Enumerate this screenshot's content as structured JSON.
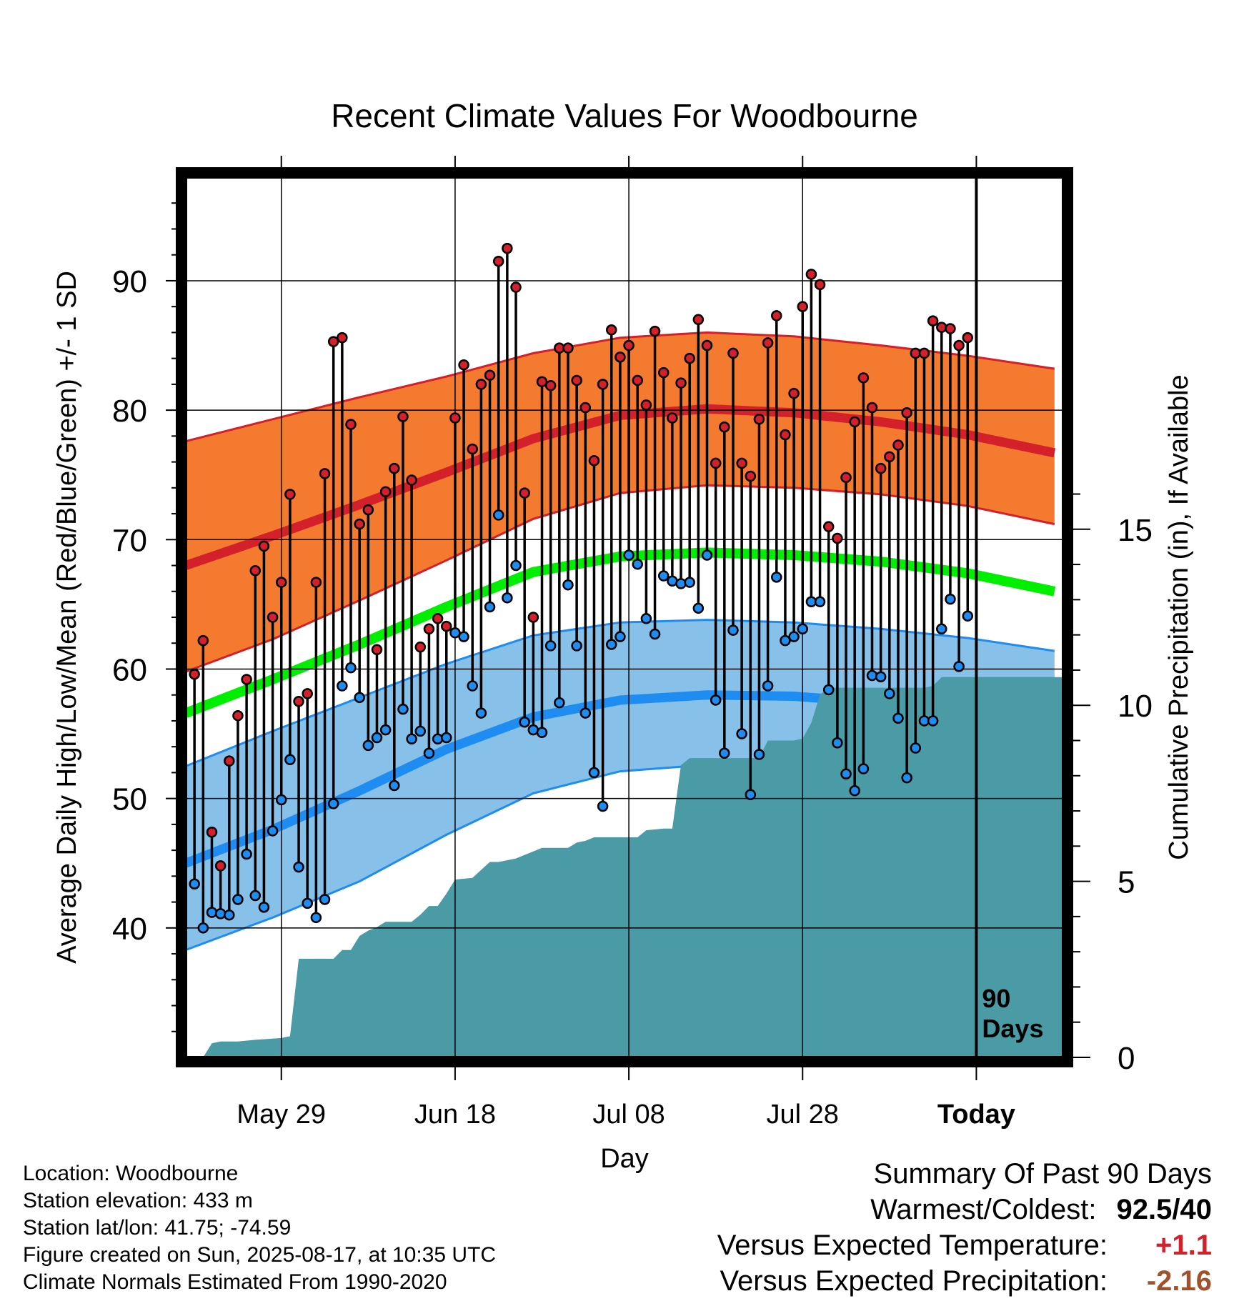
{
  "title": "Recent Climate Values For Woodbourne",
  "ylabel_left": "Average Daily High/Low/Mean (Red/Blue/Green) +/- 1 SD",
  "ylabel_right": "Cumulative Precipitation (in), If Available",
  "xlabel": "Day",
  "today_marker_line1": "90",
  "today_marker_line2": "Days",
  "colors": {
    "high_band": "#f47a30",
    "high_line": "#d3202a",
    "low_band": "#87c0e8",
    "low_line": "#1e8cf0",
    "mean_line": "#00ee00",
    "precip": "#4a9ba6",
    "warm_text": "#d3202a",
    "precip_text": "#a0522d"
  },
  "footer": {
    "location": "Location: Woodbourne",
    "elevation": "Station elevation: 433 m",
    "latlon": "Station lat/lon: 41.75; -74.59",
    "created": "Figure created on Sun, 2025-08-17, at 10:35 UTC",
    "normals": "Climate Normals Estimated From 1990-2020"
  },
  "summary": {
    "heading": "Summary Of Past 90 Days",
    "warmest_label": "Warmest/Coldest:",
    "warmest_value": "92.5/40",
    "temp_label": "Versus Expected Temperature:",
    "temp_value": "+1.1",
    "precip_label": "Versus Expected Precipitation:",
    "precip_value": "-2.16"
  },
  "chart_data": {
    "type": "line",
    "x_tick_labels": [
      {
        "day": 11,
        "label": "May 29"
      },
      {
        "day": 31,
        "label": "Jun 18"
      },
      {
        "day": 51,
        "label": "Jul 08"
      },
      {
        "day": 71,
        "label": "Jul 28"
      },
      {
        "day": 91,
        "label": "Today"
      }
    ],
    "x_range": [
      0,
      101
    ],
    "y_left_range": [
      30,
      98
    ],
    "y_left_ticks": [
      40,
      50,
      60,
      70,
      80,
      90
    ],
    "y_right_range": [
      0,
      20
    ],
    "y_right_ticks": [
      0,
      5,
      10,
      15
    ],
    "today_day": 91,
    "normal_high_mean": [
      [
        0,
        68
      ],
      [
        10,
        70.3
      ],
      [
        20,
        72.7
      ],
      [
        30,
        75.2
      ],
      [
        40,
        77.8
      ],
      [
        50,
        79.6
      ],
      [
        60,
        80.1
      ],
      [
        70,
        79.8
      ],
      [
        80,
        79.1
      ],
      [
        90,
        78.1
      ],
      [
        100,
        76.7
      ]
    ],
    "normal_high_upper": [
      [
        0,
        77.6
      ],
      [
        10,
        79.3
      ],
      [
        20,
        81.0
      ],
      [
        30,
        82.6
      ],
      [
        40,
        84.4
      ],
      [
        50,
        85.6
      ],
      [
        60,
        86.0
      ],
      [
        70,
        85.7
      ],
      [
        80,
        85.0
      ],
      [
        90,
        84.2
      ],
      [
        100,
        83.2
      ]
    ],
    "normal_high_lower": [
      [
        0,
        59.8
      ],
      [
        10,
        62.3
      ],
      [
        20,
        65.3
      ],
      [
        30,
        68.4
      ],
      [
        40,
        71.6
      ],
      [
        50,
        73.6
      ],
      [
        60,
        74.2
      ],
      [
        70,
        74.0
      ],
      [
        80,
        73.5
      ],
      [
        90,
        72.6
      ],
      [
        100,
        71.2
      ]
    ],
    "normal_mean": [
      [
        0,
        56.6
      ],
      [
        10,
        59.2
      ],
      [
        20,
        61.9
      ],
      [
        30,
        64.8
      ],
      [
        40,
        67.5
      ],
      [
        50,
        68.7
      ],
      [
        60,
        69.0
      ],
      [
        70,
        68.8
      ],
      [
        80,
        68.3
      ],
      [
        90,
        67.4
      ],
      [
        100,
        66.0
      ]
    ],
    "normal_low_mean": [
      [
        0,
        45.0
      ],
      [
        10,
        47.6
      ],
      [
        20,
        50.6
      ],
      [
        30,
        53.8
      ],
      [
        40,
        56.3
      ],
      [
        50,
        57.6
      ],
      [
        60,
        58.0
      ],
      [
        70,
        57.9
      ],
      [
        80,
        57.4
      ],
      [
        90,
        56.5
      ],
      [
        100,
        55.0
      ]
    ],
    "normal_low_upper": [
      [
        0,
        52.5
      ],
      [
        10,
        55.2
      ],
      [
        20,
        57.8
      ],
      [
        30,
        60.4
      ],
      [
        40,
        62.6
      ],
      [
        50,
        63.6
      ],
      [
        60,
        63.8
      ],
      [
        70,
        63.6
      ],
      [
        80,
        63.1
      ],
      [
        90,
        62.4
      ],
      [
        100,
        61.4
      ]
    ],
    "normal_low_lower": [
      [
        0,
        38.3
      ],
      [
        10,
        40.8
      ],
      [
        20,
        43.6
      ],
      [
        30,
        47.2
      ],
      [
        40,
        50.4
      ],
      [
        50,
        52.1
      ],
      [
        60,
        52.6
      ],
      [
        70,
        52.5
      ],
      [
        80,
        51.9
      ],
      [
        90,
        50.9
      ],
      [
        100,
        49.4
      ]
    ],
    "daily_high": [
      59.6,
      62.2,
      47.4,
      44.8,
      52.9,
      56.4,
      59.2,
      67.6,
      69.5,
      64.0,
      66.7,
      73.5,
      57.5,
      58.1,
      66.7,
      75.1,
      85.3,
      85.6,
      78.9,
      71.2,
      72.3,
      61.5,
      73.7,
      75.5,
      79.5,
      74.6,
      61.7,
      63.1,
      63.9,
      63.3,
      79.4,
      83.5,
      77.0,
      82.0,
      82.7,
      91.5,
      92.5,
      89.5,
      73.6,
      64.0,
      82.2,
      81.9,
      84.8,
      84.8,
      82.3,
      80.2,
      76.1,
      82.0,
      86.2,
      84.1,
      85.0,
      82.3,
      80.4,
      86.1,
      82.9,
      79.4,
      82.1,
      84.0,
      87.0,
      85.0,
      75.9,
      78.7,
      84.4,
      75.9,
      74.9,
      79.3,
      85.2,
      87.3,
      78.1,
      81.3,
      88.0,
      90.5,
      89.7,
      71.0,
      70.1,
      74.8,
      79.1,
      82.5,
      80.2,
      75.5,
      76.4,
      77.3,
      79.8,
      84.4,
      84.4,
      86.9,
      86.4,
      86.3,
      85.0,
      85.6
    ],
    "daily_low": [
      43.4,
      40.0,
      41.2,
      41.1,
      41.0,
      42.2,
      45.7,
      42.5,
      41.6,
      47.5,
      49.9,
      53.0,
      44.7,
      41.9,
      40.8,
      42.2,
      49.6,
      58.7,
      60.1,
      57.8,
      54.1,
      54.7,
      55.3,
      51.0,
      56.9,
      54.6,
      55.2,
      53.5,
      54.6,
      54.7,
      62.8,
      62.5,
      58.7,
      56.6,
      64.8,
      71.9,
      65.5,
      68.0,
      55.9,
      55.3,
      55.1,
      61.8,
      57.4,
      66.5,
      61.8,
      56.6,
      52.0,
      49.4,
      61.9,
      62.5,
      68.8,
      68.1,
      63.9,
      62.7,
      67.2,
      66.8,
      66.6,
      66.7,
      64.7,
      68.8,
      57.6,
      53.5,
      63.0,
      55.0,
      50.3,
      53.4,
      58.7,
      67.1,
      62.2,
      62.5,
      63.1,
      65.2,
      65.2,
      58.4,
      54.3,
      51.9,
      50.6,
      52.3,
      59.5,
      59.4,
      58.1,
      56.2,
      51.6,
      53.9,
      56.0,
      56.0,
      63.1,
      65.4,
      60.2,
      64.1
    ],
    "cumulative_precip": [
      [
        0,
        0
      ],
      [
        2,
        0
      ],
      [
        3,
        0.4
      ],
      [
        4,
        0.45
      ],
      [
        6,
        0.45
      ],
      [
        8,
        0.5
      ],
      [
        11,
        0.55
      ],
      [
        12,
        0.6
      ],
      [
        13,
        2.8
      ],
      [
        17,
        2.8
      ],
      [
        18,
        3.05
      ],
      [
        19,
        3.05
      ],
      [
        20,
        3.45
      ],
      [
        21,
        3.6
      ],
      [
        22,
        3.7
      ],
      [
        23,
        3.85
      ],
      [
        26,
        3.85
      ],
      [
        27,
        4.05
      ],
      [
        28,
        4.3
      ],
      [
        29,
        4.3
      ],
      [
        30,
        4.65
      ],
      [
        31,
        5.05
      ],
      [
        33,
        5.1
      ],
      [
        35,
        5.55
      ],
      [
        36,
        5.55
      ],
      [
        38,
        5.65
      ],
      [
        39,
        5.75
      ],
      [
        40,
        5.85
      ],
      [
        41,
        5.95
      ],
      [
        44,
        5.95
      ],
      [
        45,
        6.1
      ],
      [
        46,
        6.15
      ],
      [
        47,
        6.25
      ],
      [
        52,
        6.25
      ],
      [
        53,
        6.45
      ],
      [
        55,
        6.5
      ],
      [
        56,
        6.5
      ],
      [
        57,
        8.3
      ],
      [
        58,
        8.5
      ],
      [
        65,
        8.5
      ],
      [
        66,
        8.5
      ],
      [
        67,
        9.0
      ],
      [
        69,
        9.0
      ],
      [
        70,
        9.0
      ],
      [
        71,
        9.05
      ],
      [
        72,
        9.5
      ],
      [
        73,
        10.3
      ],
      [
        74,
        10.5
      ],
      [
        85,
        10.5
      ],
      [
        86,
        10.55
      ],
      [
        87,
        10.8
      ],
      [
        90,
        10.8
      ]
    ]
  }
}
